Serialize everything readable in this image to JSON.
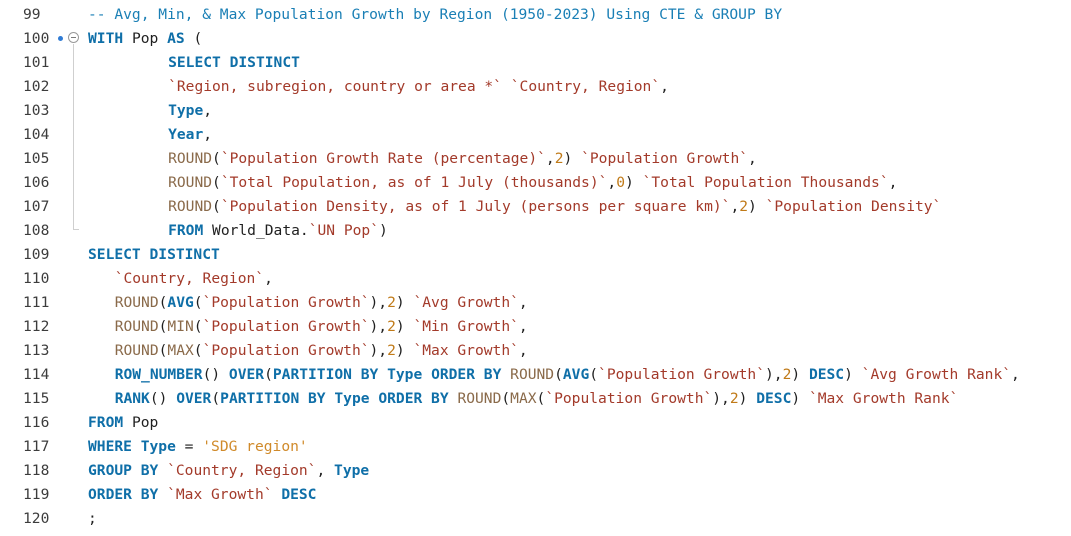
{
  "editor": {
    "language": "sql",
    "colors": {
      "keyword": "#0f6fa8",
      "identifier": "#1f1f1f",
      "backtick": "#a33a2a",
      "function": "#8a6a4a",
      "number": "#c07a18",
      "string": "#d08a2a",
      "comment": "#1a7fb5",
      "line_number": "#3c3c3c"
    },
    "gutter_icons": [
      "breakpoint-dot-icon",
      "fold-toggle-icon"
    ],
    "lines": [
      {
        "n": "99",
        "indent": 0,
        "tokens": [
          {
            "t": "-- Avg, Min, & Max Population Growth by Region (1950-2023) Using CTE & GROUP BY",
            "k": "cmt"
          }
        ]
      },
      {
        "n": "100",
        "indent": 0,
        "tokens": [
          {
            "t": "WITH",
            "k": "kw"
          },
          {
            "t": " Pop ",
            "k": "id"
          },
          {
            "t": "AS",
            "k": "kw"
          },
          {
            "t": " (",
            "k": "pun"
          }
        ]
      },
      {
        "n": "101",
        "indent": 9,
        "tokens": [
          {
            "t": "SELECT DISTINCT",
            "k": "kw"
          }
        ]
      },
      {
        "n": "102",
        "indent": 9,
        "tokens": [
          {
            "t": "`Region, subregion, country or area *`",
            "k": "bt"
          },
          {
            "t": " ",
            "k": "pun"
          },
          {
            "t": "`Country, Region`",
            "k": "bt"
          },
          {
            "t": ",",
            "k": "pun"
          }
        ]
      },
      {
        "n": "103",
        "indent": 9,
        "tokens": [
          {
            "t": "Type",
            "k": "kw"
          },
          {
            "t": ",",
            "k": "pun"
          }
        ]
      },
      {
        "n": "104",
        "indent": 9,
        "tokens": [
          {
            "t": "Year",
            "k": "kw"
          },
          {
            "t": ",",
            "k": "pun"
          }
        ]
      },
      {
        "n": "105",
        "indent": 9,
        "tokens": [
          {
            "t": "ROUND",
            "k": "fn"
          },
          {
            "t": "(",
            "k": "pun"
          },
          {
            "t": "`Population Growth Rate (percentage)`",
            "k": "bt"
          },
          {
            "t": ",",
            "k": "pun"
          },
          {
            "t": "2",
            "k": "num"
          },
          {
            "t": ") ",
            "k": "pun"
          },
          {
            "t": "`Population Growth`",
            "k": "bt"
          },
          {
            "t": ",",
            "k": "pun"
          }
        ]
      },
      {
        "n": "106",
        "indent": 9,
        "tokens": [
          {
            "t": "ROUND",
            "k": "fn"
          },
          {
            "t": "(",
            "k": "pun"
          },
          {
            "t": "`Total Population, as of 1 July (thousands)`",
            "k": "bt"
          },
          {
            "t": ",",
            "k": "pun"
          },
          {
            "t": "0",
            "k": "num"
          },
          {
            "t": ") ",
            "k": "pun"
          },
          {
            "t": "`Total Population Thousands`",
            "k": "bt"
          },
          {
            "t": ",",
            "k": "pun"
          }
        ]
      },
      {
        "n": "107",
        "indent": 9,
        "tokens": [
          {
            "t": "ROUND",
            "k": "fn"
          },
          {
            "t": "(",
            "k": "pun"
          },
          {
            "t": "`Population Density, as of 1 July (persons per square km)`",
            "k": "bt"
          },
          {
            "t": ",",
            "k": "pun"
          },
          {
            "t": "2",
            "k": "num"
          },
          {
            "t": ") ",
            "k": "pun"
          },
          {
            "t": "`Population Density`",
            "k": "bt"
          }
        ]
      },
      {
        "n": "108",
        "indent": 9,
        "tokens": [
          {
            "t": "FROM",
            "k": "kw"
          },
          {
            "t": " World_Data.",
            "k": "id"
          },
          {
            "t": "`UN Pop`",
            "k": "bt"
          },
          {
            "t": ")",
            "k": "pun"
          }
        ]
      },
      {
        "n": "109",
        "indent": 0,
        "tokens": [
          {
            "t": "SELECT DISTINCT",
            "k": "kw"
          }
        ]
      },
      {
        "n": "110",
        "indent": 3,
        "tokens": [
          {
            "t": "`Country, Region`",
            "k": "bt"
          },
          {
            "t": ",",
            "k": "pun"
          }
        ]
      },
      {
        "n": "111",
        "indent": 3,
        "tokens": [
          {
            "t": "ROUND",
            "k": "fn"
          },
          {
            "t": "(",
            "k": "pun"
          },
          {
            "t": "AVG",
            "k": "kw"
          },
          {
            "t": "(",
            "k": "pun"
          },
          {
            "t": "`Population Growth`",
            "k": "bt"
          },
          {
            "t": "),",
            "k": "pun"
          },
          {
            "t": "2",
            "k": "num"
          },
          {
            "t": ") ",
            "k": "pun"
          },
          {
            "t": "`Avg Growth`",
            "k": "bt"
          },
          {
            "t": ",",
            "k": "pun"
          }
        ]
      },
      {
        "n": "112",
        "indent": 3,
        "tokens": [
          {
            "t": "ROUND",
            "k": "fn"
          },
          {
            "t": "(",
            "k": "pun"
          },
          {
            "t": "MIN",
            "k": "fn"
          },
          {
            "t": "(",
            "k": "pun"
          },
          {
            "t": "`Population Growth`",
            "k": "bt"
          },
          {
            "t": "),",
            "k": "pun"
          },
          {
            "t": "2",
            "k": "num"
          },
          {
            "t": ") ",
            "k": "pun"
          },
          {
            "t": "`Min Growth`",
            "k": "bt"
          },
          {
            "t": ",",
            "k": "pun"
          }
        ]
      },
      {
        "n": "113",
        "indent": 3,
        "tokens": [
          {
            "t": "ROUND",
            "k": "fn"
          },
          {
            "t": "(",
            "k": "pun"
          },
          {
            "t": "MAX",
            "k": "fn"
          },
          {
            "t": "(",
            "k": "pun"
          },
          {
            "t": "`Population Growth`",
            "k": "bt"
          },
          {
            "t": "),",
            "k": "pun"
          },
          {
            "t": "2",
            "k": "num"
          },
          {
            "t": ") ",
            "k": "pun"
          },
          {
            "t": "`Max Growth`",
            "k": "bt"
          },
          {
            "t": ",",
            "k": "pun"
          }
        ]
      },
      {
        "n": "114",
        "indent": 3,
        "tokens": [
          {
            "t": "ROW_NUMBER",
            "k": "kw"
          },
          {
            "t": "() ",
            "k": "pun"
          },
          {
            "t": "OVER",
            "k": "kw"
          },
          {
            "t": "(",
            "k": "pun"
          },
          {
            "t": "PARTITION BY",
            "k": "kw"
          },
          {
            "t": " ",
            "k": "pun"
          },
          {
            "t": "Type",
            "k": "kw"
          },
          {
            "t": " ",
            "k": "pun"
          },
          {
            "t": "ORDER BY",
            "k": "kw"
          },
          {
            "t": " ",
            "k": "pun"
          },
          {
            "t": "ROUND",
            "k": "fn"
          },
          {
            "t": "(",
            "k": "pun"
          },
          {
            "t": "AVG",
            "k": "kw"
          },
          {
            "t": "(",
            "k": "pun"
          },
          {
            "t": "`Population Growth`",
            "k": "bt"
          },
          {
            "t": "),",
            "k": "pun"
          },
          {
            "t": "2",
            "k": "num"
          },
          {
            "t": ") ",
            "k": "pun"
          },
          {
            "t": "DESC",
            "k": "kw"
          },
          {
            "t": ") ",
            "k": "pun"
          },
          {
            "t": "`Avg Growth Rank`",
            "k": "bt"
          },
          {
            "t": ",",
            "k": "pun"
          }
        ]
      },
      {
        "n": "115",
        "indent": 3,
        "tokens": [
          {
            "t": "RANK",
            "k": "kw"
          },
          {
            "t": "() ",
            "k": "pun"
          },
          {
            "t": "OVER",
            "k": "kw"
          },
          {
            "t": "(",
            "k": "pun"
          },
          {
            "t": "PARTITION BY",
            "k": "kw"
          },
          {
            "t": " ",
            "k": "pun"
          },
          {
            "t": "Type",
            "k": "kw"
          },
          {
            "t": " ",
            "k": "pun"
          },
          {
            "t": "ORDER BY",
            "k": "kw"
          },
          {
            "t": " ",
            "k": "pun"
          },
          {
            "t": "ROUND",
            "k": "fn"
          },
          {
            "t": "(",
            "k": "pun"
          },
          {
            "t": "MAX",
            "k": "fn"
          },
          {
            "t": "(",
            "k": "pun"
          },
          {
            "t": "`Population Growth`",
            "k": "bt"
          },
          {
            "t": "),",
            "k": "pun"
          },
          {
            "t": "2",
            "k": "num"
          },
          {
            "t": ") ",
            "k": "pun"
          },
          {
            "t": "DESC",
            "k": "kw"
          },
          {
            "t": ") ",
            "k": "pun"
          },
          {
            "t": "`Max Growth Rank`",
            "k": "bt"
          }
        ]
      },
      {
        "n": "116",
        "indent": 0,
        "tokens": [
          {
            "t": "FROM",
            "k": "kw"
          },
          {
            "t": " Pop",
            "k": "id"
          }
        ]
      },
      {
        "n": "117",
        "indent": 0,
        "tokens": [
          {
            "t": "WHERE",
            "k": "kw"
          },
          {
            "t": " ",
            "k": "pun"
          },
          {
            "t": "Type",
            "k": "kw"
          },
          {
            "t": " = ",
            "k": "pun"
          },
          {
            "t": "'SDG region'",
            "k": "str"
          }
        ]
      },
      {
        "n": "118",
        "indent": 0,
        "tokens": [
          {
            "t": "GROUP BY",
            "k": "kw"
          },
          {
            "t": " ",
            "k": "pun"
          },
          {
            "t": "`Country, Region`",
            "k": "bt"
          },
          {
            "t": ", ",
            "k": "pun"
          },
          {
            "t": "Type",
            "k": "kw"
          }
        ]
      },
      {
        "n": "119",
        "indent": 0,
        "tokens": [
          {
            "t": "ORDER BY",
            "k": "kw"
          },
          {
            "t": " ",
            "k": "pun"
          },
          {
            "t": "`Max Growth`",
            "k": "bt"
          },
          {
            "t": " ",
            "k": "pun"
          },
          {
            "t": "DESC",
            "k": "kw"
          }
        ]
      },
      {
        "n": "120",
        "indent": 0,
        "tokens": [
          {
            "t": ";",
            "k": "pun"
          }
        ]
      }
    ]
  }
}
